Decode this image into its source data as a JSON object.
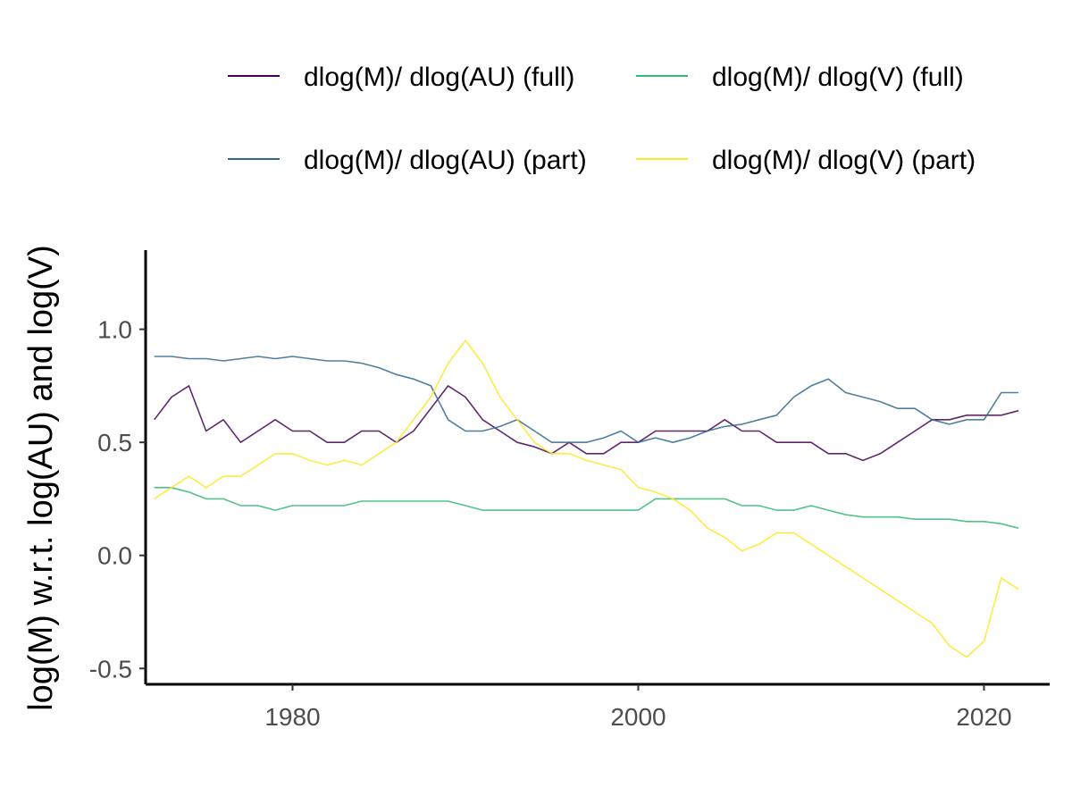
{
  "chart_data": {
    "type": "line",
    "title": "",
    "xlabel": "",
    "ylabel": "log(M) w.r.t. log(AU) and log(V)",
    "xlim": [
      1971.5,
      2023.8
    ],
    "ylim": [
      -0.57,
      1.35
    ],
    "x_ticks": [
      1980,
      2000,
      2020
    ],
    "y_ticks": [
      -0.5,
      0.0,
      0.5,
      1.0
    ],
    "x_tick_labels": [
      "1980",
      "2000",
      "2020"
    ],
    "y_tick_labels": [
      "-0.5",
      "0.0",
      "0.5",
      "1.0"
    ],
    "grid": false,
    "legend_position": "top",
    "series": [
      {
        "name": "dlog(M)/ dlog(AU) (full)",
        "color": "#440154",
        "x": [
          1972,
          1973,
          1974,
          1975,
          1976,
          1977,
          1978,
          1979,
          1980,
          1981,
          1982,
          1983,
          1984,
          1985,
          1986,
          1987,
          1988,
          1989,
          1990,
          1991,
          1992,
          1993,
          1994,
          1995,
          1996,
          1997,
          1998,
          1999,
          2000,
          2001,
          2002,
          2003,
          2004,
          2005,
          2006,
          2007,
          2008,
          2009,
          2010,
          2011,
          2012,
          2013,
          2014,
          2015,
          2016,
          2017,
          2018,
          2019,
          2020,
          2021,
          2022
        ],
        "y": [
          0.6,
          0.7,
          0.75,
          0.55,
          0.6,
          0.5,
          0.55,
          0.6,
          0.55,
          0.55,
          0.5,
          0.5,
          0.55,
          0.55,
          0.5,
          0.55,
          0.65,
          0.75,
          0.7,
          0.6,
          0.55,
          0.5,
          0.48,
          0.45,
          0.5,
          0.45,
          0.45,
          0.5,
          0.5,
          0.55,
          0.55,
          0.55,
          0.55,
          0.6,
          0.55,
          0.55,
          0.5,
          0.5,
          0.5,
          0.45,
          0.45,
          0.42,
          0.45,
          0.5,
          0.55,
          0.6,
          0.6,
          0.62,
          0.62,
          0.62,
          0.64
        ]
      },
      {
        "name": "dlog(M)/ dlog(AU) (part)",
        "color": "#31688e",
        "x": [
          1972,
          1973,
          1974,
          1975,
          1976,
          1977,
          1978,
          1979,
          1980,
          1981,
          1982,
          1983,
          1984,
          1985,
          1986,
          1987,
          1988,
          1989,
          1990,
          1991,
          1992,
          1993,
          1994,
          1995,
          1996,
          1997,
          1998,
          1999,
          2000,
          2001,
          2002,
          2003,
          2004,
          2005,
          2006,
          2007,
          2008,
          2009,
          2010,
          2011,
          2012,
          2013,
          2014,
          2015,
          2016,
          2017,
          2018,
          2019,
          2020,
          2021,
          2022
        ],
        "y": [
          0.88,
          0.88,
          0.87,
          0.87,
          0.86,
          0.87,
          0.88,
          0.87,
          0.88,
          0.87,
          0.86,
          0.86,
          0.85,
          0.83,
          0.8,
          0.78,
          0.75,
          0.6,
          0.55,
          0.55,
          0.57,
          0.6,
          0.55,
          0.5,
          0.5,
          0.5,
          0.52,
          0.55,
          0.5,
          0.52,
          0.5,
          0.52,
          0.55,
          0.57,
          0.58,
          0.6,
          0.62,
          0.7,
          0.75,
          0.78,
          0.72,
          0.7,
          0.68,
          0.65,
          0.65,
          0.6,
          0.58,
          0.6,
          0.6,
          0.72,
          0.72
        ]
      },
      {
        "name": "dlog(M)/ dlog(V) (full)",
        "color": "#35b779",
        "x": [
          1972,
          1973,
          1974,
          1975,
          1976,
          1977,
          1978,
          1979,
          1980,
          1981,
          1982,
          1983,
          1984,
          1985,
          1986,
          1987,
          1988,
          1989,
          1990,
          1991,
          1992,
          1993,
          1994,
          1995,
          1996,
          1997,
          1998,
          1999,
          2000,
          2001,
          2002,
          2003,
          2004,
          2005,
          2006,
          2007,
          2008,
          2009,
          2010,
          2011,
          2012,
          2013,
          2014,
          2015,
          2016,
          2017,
          2018,
          2019,
          2020,
          2021,
          2022
        ],
        "y": [
          0.3,
          0.3,
          0.28,
          0.25,
          0.25,
          0.22,
          0.22,
          0.2,
          0.22,
          0.22,
          0.22,
          0.22,
          0.24,
          0.24,
          0.24,
          0.24,
          0.24,
          0.24,
          0.22,
          0.2,
          0.2,
          0.2,
          0.2,
          0.2,
          0.2,
          0.2,
          0.2,
          0.2,
          0.2,
          0.25,
          0.25,
          0.25,
          0.25,
          0.25,
          0.22,
          0.22,
          0.2,
          0.2,
          0.22,
          0.2,
          0.18,
          0.17,
          0.17,
          0.17,
          0.16,
          0.16,
          0.16,
          0.15,
          0.15,
          0.14,
          0.12
        ]
      },
      {
        "name": "dlog(M)/ dlog(V) (part)",
        "color": "#fde725",
        "x": [
          1972,
          1973,
          1974,
          1975,
          1976,
          1977,
          1978,
          1979,
          1980,
          1981,
          1982,
          1983,
          1984,
          1985,
          1986,
          1987,
          1988,
          1989,
          1990,
          1991,
          1992,
          1993,
          1994,
          1995,
          1996,
          1997,
          1998,
          1999,
          2000,
          2001,
          2002,
          2003,
          2004,
          2005,
          2006,
          2007,
          2008,
          2009,
          2010,
          2011,
          2012,
          2013,
          2014,
          2015,
          2016,
          2017,
          2018,
          2019,
          2020,
          2021,
          2022
        ],
        "y": [
          0.25,
          0.3,
          0.35,
          0.3,
          0.35,
          0.35,
          0.4,
          0.45,
          0.45,
          0.42,
          0.4,
          0.42,
          0.4,
          0.45,
          0.5,
          0.6,
          0.7,
          0.85,
          0.95,
          0.85,
          0.7,
          0.6,
          0.5,
          0.45,
          0.45,
          0.42,
          0.4,
          0.38,
          0.3,
          0.28,
          0.25,
          0.2,
          0.12,
          0.08,
          0.02,
          0.05,
          0.1,
          0.1,
          0.05,
          0.0,
          -0.05,
          -0.1,
          -0.15,
          -0.2,
          -0.25,
          -0.3,
          -0.4,
          -0.45,
          -0.38,
          -0.1,
          -0.15
        ]
      }
    ]
  }
}
